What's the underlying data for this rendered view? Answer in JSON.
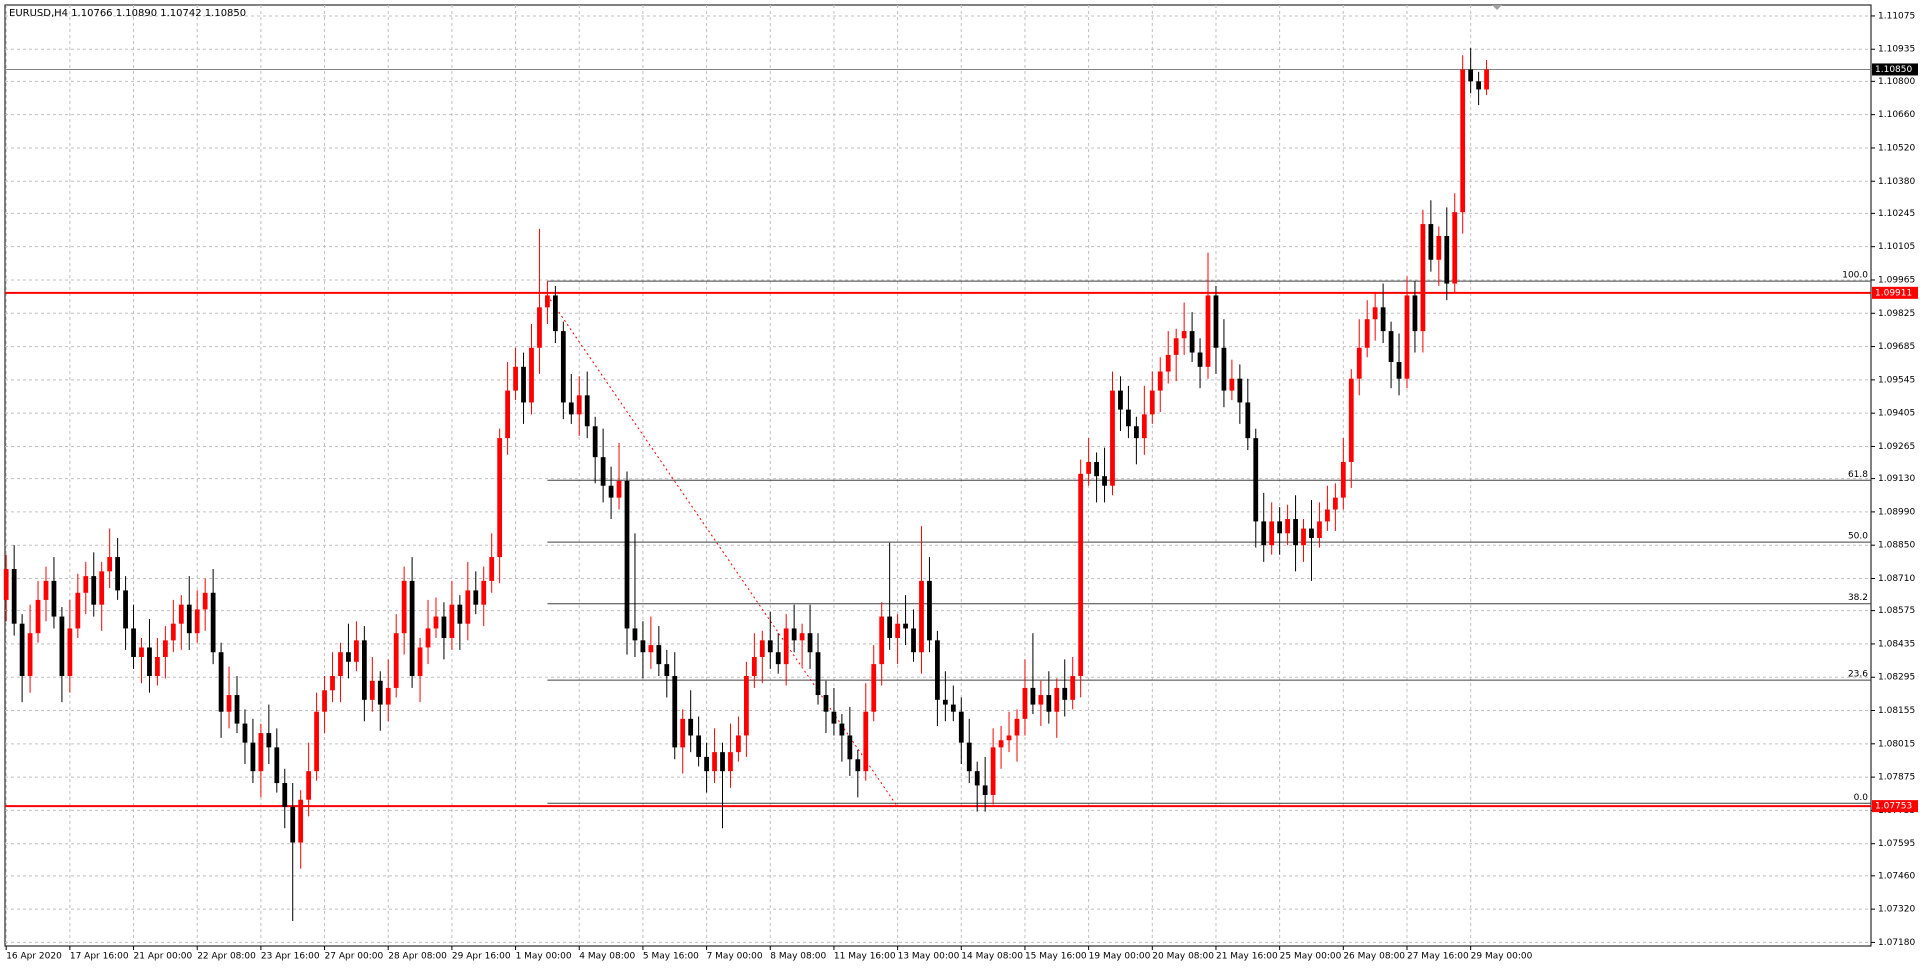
{
  "chart_data": {
    "type": "candlestick",
    "title": "EURUSD,H4  1.10766 1.10890 1.10742 1.10850",
    "up_color": "#ff0000",
    "down_color": "#000000",
    "grid": true,
    "grid_color": "#c0c0c0",
    "xlim": [
      -0.15,
      234.3
    ],
    "ylim": [
      1.07165,
      1.11121
    ],
    "xticks": [
      {
        "value": 0,
        "label": "16 Apr 2020"
      },
      {
        "value": 8,
        "label": "17 Apr 16:00"
      },
      {
        "value": 16,
        "label": "21 Apr 00:00"
      },
      {
        "value": 24,
        "label": "22 Apr 08:00"
      },
      {
        "value": 32,
        "label": "23 Apr 16:00"
      },
      {
        "value": 40,
        "label": "27 Apr 00:00"
      },
      {
        "value": 48,
        "label": "28 Apr 08:00"
      },
      {
        "value": 56,
        "label": "29 Apr 16:00"
      },
      {
        "value": 64,
        "label": "1 May 00:00"
      },
      {
        "value": 72,
        "label": "4 May 08:00"
      },
      {
        "value": 80,
        "label": "5 May 16:00"
      },
      {
        "value": 88,
        "label": "7 May 00:00"
      },
      {
        "value": 96,
        "label": "8 May 08:00"
      },
      {
        "value": 104,
        "label": "11 May 16:00"
      },
      {
        "value": 112,
        "label": "13 May 00:00"
      },
      {
        "value": 120,
        "label": "14 May 08:00"
      },
      {
        "value": 128,
        "label": "15 May 16:00"
      },
      {
        "value": 136,
        "label": "19 May 00:00"
      },
      {
        "value": 144,
        "label": "20 May 08:00"
      },
      {
        "value": 152,
        "label": "21 May 16:00"
      },
      {
        "value": 160,
        "label": "25 May 00:00"
      },
      {
        "value": 168,
        "label": "26 May 08:00"
      },
      {
        "value": 176,
        "label": "27 May 16:00"
      },
      {
        "value": 184,
        "label": "29 May 00:00"
      }
    ],
    "yticks": [
      {
        "value": 1.11075,
        "label": "1.11075"
      },
      {
        "value": 1.10935,
        "label": "1.10935"
      },
      {
        "value": 1.108,
        "label": "1.10800"
      },
      {
        "value": 1.1066,
        "label": "1.10660"
      },
      {
        "value": 1.1052,
        "label": "1.10520"
      },
      {
        "value": 1.1038,
        "label": "1.10380"
      },
      {
        "value": 1.10245,
        "label": "1.10245"
      },
      {
        "value": 1.10105,
        "label": "1.10105"
      },
      {
        "value": 1.09965,
        "label": "1.09965"
      },
      {
        "value": 1.09825,
        "label": "1.09825"
      },
      {
        "value": 1.09685,
        "label": "1.09685"
      },
      {
        "value": 1.09545,
        "label": "1.09545"
      },
      {
        "value": 1.09405,
        "label": "1.09405"
      },
      {
        "value": 1.09265,
        "label": "1.09265"
      },
      {
        "value": 1.0913,
        "label": "1.09130"
      },
      {
        "value": 1.0899,
        "label": "1.08990"
      },
      {
        "value": 1.0885,
        "label": "1.08850"
      },
      {
        "value": 1.0871,
        "label": "1.08710"
      },
      {
        "value": 1.08575,
        "label": "1.08575"
      },
      {
        "value": 1.08435,
        "label": "1.08435"
      },
      {
        "value": 1.08295,
        "label": "1.08295"
      },
      {
        "value": 1.08155,
        "label": "1.08155"
      },
      {
        "value": 1.08015,
        "label": "1.08015"
      },
      {
        "value": 1.07875,
        "label": "1.07875"
      },
      {
        "value": 1.07735,
        "label": "1.07735"
      },
      {
        "value": 1.07595,
        "label": "1.07595"
      },
      {
        "value": 1.0746,
        "label": "1.07460"
      },
      {
        "value": 1.0732,
        "label": "1.07320"
      },
      {
        "value": 1.0718,
        "label": "1.07180"
      }
    ],
    "price_line": {
      "value": 1.1085,
      "label": "1.10850",
      "color": "#808080"
    },
    "hlines": [
      {
        "value": 1.09911,
        "label": "1.09911",
        "color": "#ff0000"
      },
      {
        "value": 1.07753,
        "label": "1.07753",
        "color": "#ff0000"
      }
    ],
    "fibonacci": {
      "start": 68,
      "color": "#404040",
      "levels": [
        {
          "name": "100.0",
          "value": 1.0996
        },
        {
          "name": "61.8",
          "value": 1.09123
        },
        {
          "name": "50.0",
          "value": 1.08863
        },
        {
          "name": "38.2",
          "value": 1.08604
        },
        {
          "name": "23.6",
          "value": 1.08283
        },
        {
          "name": "0.0",
          "value": 1.07765
        }
      ]
    },
    "trendline": {
      "x": [
        68,
        112
      ],
      "y": [
        1.099,
        1.0775
      ],
      "color": "#ff0000"
    },
    "candles": [
      [
        1.0862,
        1.0881,
        1.0853,
        1.0875
      ],
      [
        1.0875,
        1.0885,
        1.0847,
        1.0852
      ],
      [
        1.0852,
        1.0856,
        1.0819,
        1.083
      ],
      [
        1.083,
        1.086,
        1.0823,
        1.0848
      ],
      [
        1.0848,
        1.087,
        1.0844,
        1.0862
      ],
      [
        1.0862,
        1.0876,
        1.0853,
        1.087
      ],
      [
        1.087,
        1.088,
        1.085,
        1.0855
      ],
      [
        1.0855,
        1.0859,
        1.0819,
        1.083
      ],
      [
        1.083,
        1.0862,
        1.0823,
        1.085
      ],
      [
        1.085,
        1.0873,
        1.0846,
        1.0865
      ],
      [
        1.0865,
        1.0878,
        1.0856,
        1.0872
      ],
      [
        1.0872,
        1.0882,
        1.0855,
        1.086
      ],
      [
        1.086,
        1.0878,
        1.0849,
        1.0874
      ],
      [
        1.0874,
        1.0892,
        1.0867,
        1.088
      ],
      [
        1.088,
        1.0888,
        1.0862,
        1.0866
      ],
      [
        1.0866,
        1.0872,
        1.0841,
        1.085
      ],
      [
        1.085,
        1.086,
        1.0833,
        1.0838
      ],
      [
        1.0838,
        1.0846,
        1.0827,
        1.0842
      ],
      [
        1.0842,
        1.0854,
        1.0823,
        1.083
      ],
      [
        1.083,
        1.0846,
        1.0826,
        1.0838
      ],
      [
        1.0838,
        1.0851,
        1.0829,
        1.0845
      ],
      [
        1.0845,
        1.0862,
        1.084,
        1.0852
      ],
      [
        1.0852,
        1.0864,
        1.0841,
        1.086
      ],
      [
        1.086,
        1.0872,
        1.0841,
        1.0848
      ],
      [
        1.0848,
        1.0866,
        1.0844,
        1.0858
      ],
      [
        1.0858,
        1.0871,
        1.0849,
        1.0865
      ],
      [
        1.0865,
        1.0875,
        1.0835,
        1.084
      ],
      [
        1.084,
        1.0844,
        1.0804,
        1.0815
      ],
      [
        1.0815,
        1.0834,
        1.0808,
        1.0822
      ],
      [
        1.0822,
        1.083,
        1.0806,
        1.081
      ],
      [
        1.081,
        1.0816,
        1.0793,
        1.0802
      ],
      [
        1.0802,
        1.0812,
        1.0785,
        1.079
      ],
      [
        1.079,
        1.081,
        1.0779,
        1.0806
      ],
      [
        1.0806,
        1.0818,
        1.0793,
        1.08
      ],
      [
        1.08,
        1.0808,
        1.0781,
        1.0785
      ],
      [
        1.0785,
        1.0791,
        1.0766,
        1.0775
      ],
      [
        1.0775,
        1.0785,
        1.0727,
        1.076
      ],
      [
        1.076,
        1.0782,
        1.0749,
        1.0778
      ],
      [
        1.0778,
        1.0802,
        1.0771,
        1.079
      ],
      [
        1.079,
        1.0823,
        1.0786,
        1.0815
      ],
      [
        1.0815,
        1.083,
        1.0806,
        1.0824
      ],
      [
        1.0824,
        1.084,
        1.0819,
        1.083
      ],
      [
        1.083,
        1.0844,
        1.0819,
        1.084
      ],
      [
        1.084,
        1.0852,
        1.0829,
        1.0836
      ],
      [
        1.0836,
        1.0853,
        1.0832,
        1.0845
      ],
      [
        1.0845,
        1.0851,
        1.0811,
        1.082
      ],
      [
        1.082,
        1.0838,
        1.0815,
        1.0828
      ],
      [
        1.0828,
        1.0832,
        1.0807,
        1.0818
      ],
      [
        1.0818,
        1.0837,
        1.0811,
        1.0825
      ],
      [
        1.0825,
        1.0856,
        1.0821,
        1.0848
      ],
      [
        1.0848,
        1.0876,
        1.0839,
        1.087
      ],
      [
        1.087,
        1.088,
        1.0825,
        1.083
      ],
      [
        1.083,
        1.0846,
        1.0819,
        1.0842
      ],
      [
        1.0842,
        1.0862,
        1.0835,
        1.085
      ],
      [
        1.085,
        1.0863,
        1.0846,
        1.0855
      ],
      [
        1.0855,
        1.0861,
        1.0837,
        1.0846
      ],
      [
        1.0846,
        1.087,
        1.0841,
        1.086
      ],
      [
        1.086,
        1.0864,
        1.0841,
        1.0852
      ],
      [
        1.0852,
        1.0878,
        1.0845,
        1.0866
      ],
      [
        1.0866,
        1.0874,
        1.0856,
        1.086
      ],
      [
        1.086,
        1.0876,
        1.0851,
        1.087
      ],
      [
        1.087,
        1.089,
        1.0865,
        1.088
      ],
      [
        1.088,
        1.0934,
        1.0869,
        1.093
      ],
      [
        1.093,
        1.0962,
        1.0923,
        1.095
      ],
      [
        1.095,
        1.0968,
        1.0946,
        1.096
      ],
      [
        1.096,
        1.0966,
        1.0936,
        1.0945
      ],
      [
        1.0945,
        1.0978,
        1.094,
        1.0968
      ],
      [
        1.0968,
        1.1018,
        1.0957,
        1.0985
      ],
      [
        1.0985,
        1.0996,
        1.0978,
        1.099
      ],
      [
        1.099,
        1.0994,
        1.097,
        1.0975
      ],
      [
        1.0975,
        1.0979,
        1.0938,
        1.0945
      ],
      [
        1.0945,
        1.0957,
        1.0936,
        1.094
      ],
      [
        1.094,
        1.0956,
        1.0931,
        1.0948
      ],
      [
        1.0948,
        1.0958,
        1.093,
        1.0935
      ],
      [
        1.0935,
        1.0939,
        1.0911,
        1.0922
      ],
      [
        1.0922,
        1.0934,
        1.0903,
        1.091
      ],
      [
        1.091,
        1.0918,
        1.0896,
        1.0905
      ],
      [
        1.0905,
        1.0928,
        1.09,
        1.0912
      ],
      [
        1.0912,
        1.0916,
        1.0839,
        1.085
      ],
      [
        1.085,
        1.089,
        1.0838,
        1.0845
      ],
      [
        1.0845,
        1.0853,
        1.0829,
        1.084
      ],
      [
        1.084,
        1.0855,
        1.0833,
        1.0843
      ],
      [
        1.0843,
        1.0851,
        1.083,
        1.0835
      ],
      [
        1.0835,
        1.0841,
        1.0821,
        1.083
      ],
      [
        1.083,
        1.084,
        1.0795,
        1.08
      ],
      [
        1.08,
        1.0816,
        1.0789,
        1.0812
      ],
      [
        1.0812,
        1.0824,
        1.0798,
        1.0805
      ],
      [
        1.0805,
        1.0813,
        1.0792,
        1.0796
      ],
      [
        1.0796,
        1.0802,
        1.0781,
        1.079
      ],
      [
        1.079,
        1.0808,
        1.0785,
        1.0798
      ],
      [
        1.0798,
        1.0802,
        1.0766,
        1.079
      ],
      [
        1.079,
        1.081,
        1.0783,
        1.0798
      ],
      [
        1.0798,
        1.0813,
        1.0794,
        1.0805
      ],
      [
        1.0805,
        1.0836,
        1.0796,
        1.083
      ],
      [
        1.083,
        1.0848,
        1.0825,
        1.0838
      ],
      [
        1.0838,
        1.0849,
        1.0827,
        1.0845
      ],
      [
        1.0845,
        1.0857,
        1.0833,
        1.084
      ],
      [
        1.084,
        1.0848,
        1.0831,
        1.0835
      ],
      [
        1.0835,
        1.0856,
        1.0826,
        1.085
      ],
      [
        1.085,
        1.086,
        1.084,
        1.0845
      ],
      [
        1.0845,
        1.0852,
        1.0834,
        1.0848
      ],
      [
        1.0848,
        1.086,
        1.0833,
        1.084
      ],
      [
        1.084,
        1.0848,
        1.0818,
        1.0822
      ],
      [
        1.0822,
        1.0828,
        1.0806,
        1.0815
      ],
      [
        1.0815,
        1.0825,
        1.0805,
        1.081
      ],
      [
        1.081,
        1.0814,
        1.0794,
        1.0805
      ],
      [
        1.0805,
        1.0817,
        1.0788,
        1.0795
      ],
      [
        1.0795,
        1.0799,
        1.0779,
        1.079
      ],
      [
        1.079,
        1.0827,
        1.0786,
        1.0815
      ],
      [
        1.0815,
        1.0843,
        1.0811,
        1.0835
      ],
      [
        1.0835,
        1.0861,
        1.0826,
        1.0855
      ],
      [
        1.0855,
        1.0886,
        1.0841,
        1.0846
      ],
      [
        1.0846,
        1.0856,
        1.0835,
        1.0852
      ],
      [
        1.0852,
        1.0864,
        1.0843,
        1.085
      ],
      [
        1.085,
        1.0858,
        1.0836,
        1.084
      ],
      [
        1.084,
        1.0893,
        1.0831,
        1.087
      ],
      [
        1.087,
        1.088,
        1.084,
        1.0845
      ],
      [
        1.0845,
        1.0849,
        1.0809,
        1.082
      ],
      [
        1.082,
        1.0832,
        1.0811,
        1.0818
      ],
      [
        1.0818,
        1.0826,
        1.0811,
        1.0815
      ],
      [
        1.0815,
        1.0821,
        1.0793,
        1.0802
      ],
      [
        1.0802,
        1.0812,
        1.0785,
        1.079
      ],
      [
        1.079,
        1.0794,
        1.0773,
        1.0784
      ],
      [
        1.0784,
        1.0796,
        1.0773,
        1.078
      ],
      [
        1.078,
        1.0808,
        1.0776,
        1.08
      ],
      [
        1.08,
        1.0809,
        1.0791,
        1.0803
      ],
      [
        1.0803,
        1.0815,
        1.0798,
        1.0805
      ],
      [
        1.0805,
        1.0816,
        1.0794,
        1.0812
      ],
      [
        1.0812,
        1.0837,
        1.0805,
        1.0825
      ],
      [
        1.0825,
        1.0848,
        1.0814,
        1.0818
      ],
      [
        1.0818,
        1.0828,
        1.0809,
        1.0822
      ],
      [
        1.0822,
        1.0832,
        1.081,
        1.0815
      ],
      [
        1.0815,
        1.0829,
        1.0804,
        1.0825
      ],
      [
        1.0825,
        1.0837,
        1.0813,
        1.082
      ],
      [
        1.082,
        1.0838,
        1.0816,
        1.083
      ],
      [
        1.083,
        1.0921,
        1.0821,
        1.0915
      ],
      [
        1.0915,
        1.093,
        1.091,
        1.092
      ],
      [
        1.092,
        1.0924,
        1.0903,
        1.0914
      ],
      [
        1.0914,
        1.0926,
        1.0903,
        1.091
      ],
      [
        1.091,
        1.0958,
        1.0906,
        1.095
      ],
      [
        1.095,
        1.0956,
        1.0933,
        1.0942
      ],
      [
        1.0942,
        1.0952,
        1.093,
        1.0935
      ],
      [
        1.0935,
        1.0939,
        1.0919,
        1.093
      ],
      [
        1.093,
        1.0952,
        1.0923,
        1.094
      ],
      [
        1.094,
        1.0958,
        1.0936,
        1.095
      ],
      [
        1.095,
        1.0964,
        1.0941,
        1.0958
      ],
      [
        1.0958,
        1.0975,
        1.0953,
        1.0965
      ],
      [
        1.0965,
        1.0976,
        1.0954,
        1.0972
      ],
      [
        1.0972,
        1.0987,
        1.0965,
        1.0975
      ],
      [
        1.0975,
        1.0983,
        1.0962,
        1.0966
      ],
      [
        1.0966,
        1.0972,
        1.0951,
        1.096
      ],
      [
        1.096,
        1.1008,
        1.0955,
        1.099
      ],
      [
        1.099,
        1.0994,
        1.0957,
        1.0968
      ],
      [
        1.0968,
        1.098,
        1.0943,
        1.095
      ],
      [
        1.095,
        1.0963,
        1.0946,
        1.0955
      ],
      [
        1.0955,
        1.0961,
        1.0936,
        1.0945
      ],
      [
        1.0945,
        1.0955,
        1.0925,
        1.093
      ],
      [
        1.093,
        1.0934,
        1.0884,
        1.0895
      ],
      [
        1.0895,
        1.0907,
        1.0878,
        1.0885
      ],
      [
        1.0885,
        1.0903,
        1.0881,
        1.0895
      ],
      [
        1.0895,
        1.0901,
        1.0881,
        1.089
      ],
      [
        1.089,
        1.0902,
        1.0885,
        1.0896
      ],
      [
        1.0896,
        1.0906,
        1.0874,
        1.0885
      ],
      [
        1.0885,
        1.0896,
        1.0878,
        1.0892
      ],
      [
        1.0892,
        1.0904,
        1.087,
        1.0888
      ],
      [
        1.0888,
        1.0903,
        1.0884,
        1.0895
      ],
      [
        1.0895,
        1.091,
        1.0891,
        1.09
      ],
      [
        1.09,
        1.0911,
        1.0891,
        1.0905
      ],
      [
        1.0905,
        1.093,
        1.09,
        1.092
      ],
      [
        1.092,
        1.0959,
        1.0909,
        1.0955
      ],
      [
        1.0955,
        1.098,
        1.0948,
        1.0968
      ],
      [
        1.0968,
        1.0988,
        1.0964,
        1.098
      ],
      [
        1.098,
        1.0991,
        1.0971,
        1.0985
      ],
      [
        1.0985,
        1.0995,
        1.097,
        1.0975
      ],
      [
        1.0975,
        1.0979,
        1.0951,
        1.0962
      ],
      [
        1.0962,
        1.0974,
        1.0948,
        1.0955
      ],
      [
        1.0955,
        1.0998,
        1.0951,
        1.099
      ],
      [
        1.099,
        1.0996,
        1.0966,
        1.0975
      ],
      [
        1.0975,
        1.1026,
        1.0966,
        1.102
      ],
      [
        1.102,
        1.103,
        1.1,
        1.1005
      ],
      [
        1.1005,
        1.1019,
        1.0994,
        1.1015
      ],
      [
        1.1015,
        1.1027,
        1.0988,
        1.0995
      ],
      [
        1.0995,
        1.1033,
        1.0991,
        1.1025
      ],
      [
        1.1025,
        1.1091,
        1.1016,
        1.1085
      ],
      [
        1.1085,
        1.1094,
        1.1075,
        1.108
      ],
      [
        1.108,
        1.1084,
        1.107,
        1.10766
      ],
      [
        1.10766,
        1.1089,
        1.10742,
        1.1085
      ]
    ]
  }
}
